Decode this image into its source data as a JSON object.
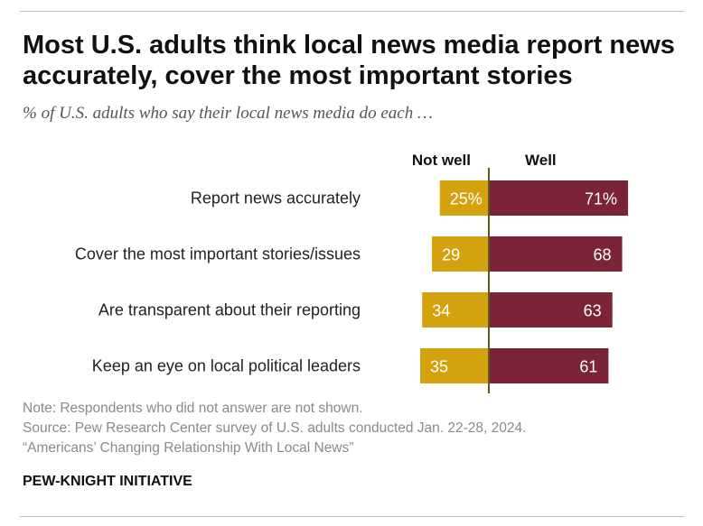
{
  "title": "Most U.S. adults think local news media report news accurately, cover the most important stories",
  "subtitle": "% of U.S. adults who say their local news media do each …",
  "colors": {
    "not_well": "#D4A20E",
    "well": "#7B2437",
    "axis_line": "#5a5a1e",
    "bar_text": "#ffffff"
  },
  "chart_data": {
    "type": "bar",
    "orientation": "horizontal-diverging",
    "categories": [
      "Report news accurately",
      "Cover the most important stories/issues",
      "Are transparent about their reporting",
      "Keep an eye on local political leaders"
    ],
    "series": [
      {
        "name": "Not well",
        "values": [
          25,
          29,
          34,
          35
        ],
        "labels": [
          "25%",
          "29",
          "34",
          "35"
        ]
      },
      {
        "name": "Well",
        "values": [
          71,
          68,
          63,
          61
        ],
        "labels": [
          "71%",
          "68",
          "63",
          "61"
        ]
      }
    ]
  },
  "notes": {
    "note": "Note: Respondents who did not answer are not shown.",
    "source": "Source: Pew Research Center survey of U.S. adults conducted Jan. 22-28, 2024.",
    "report": "“Americans’ Changing Relationship With Local News”"
  },
  "brand": "PEW-KNIGHT INITIATIVE"
}
